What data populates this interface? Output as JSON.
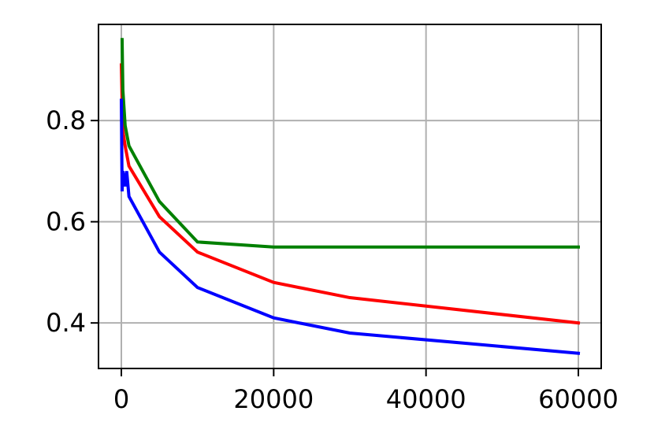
{
  "chart_data": {
    "type": "line",
    "title": "",
    "xlabel": "",
    "ylabel": "",
    "xlim": [
      -3000,
      63000
    ],
    "ylim": [
      0.31,
      0.99
    ],
    "grid": true,
    "legend": "none",
    "x_ticks": [
      {
        "value": 0,
        "label": "0"
      },
      {
        "value": 20000,
        "label": "20000"
      },
      {
        "value": 40000,
        "label": "40000"
      },
      {
        "value": 60000,
        "label": "60000"
      }
    ],
    "y_ticks": [
      {
        "value": 0.4,
        "label": "0.4"
      },
      {
        "value": 0.6,
        "label": "0.6"
      },
      {
        "value": 0.8,
        "label": "0.8"
      }
    ],
    "series": [
      {
        "color": "#ff0000",
        "x": [
          0,
          100,
          200,
          500,
          1000,
          5000,
          10000,
          20000,
          30000,
          60000
        ],
        "y": [
          0.91,
          0.84,
          0.78,
          0.75,
          0.71,
          0.61,
          0.54,
          0.48,
          0.45,
          0.4
        ]
      },
      {
        "color": "#008000",
        "x": [
          100,
          200,
          500,
          1000,
          5000,
          10000,
          20000,
          30000,
          60000
        ],
        "y": [
          0.96,
          0.86,
          0.79,
          0.75,
          0.64,
          0.56,
          0.55,
          0.55,
          0.55
        ]
      },
      {
        "color": "#0000ff",
        "x": [
          0,
          100,
          200,
          500,
          700,
          1000,
          5000,
          10000,
          20000,
          30000,
          60000
        ],
        "y": [
          0.84,
          0.66,
          0.7,
          0.67,
          0.7,
          0.65,
          0.54,
          0.47,
          0.41,
          0.38,
          0.34
        ]
      }
    ]
  }
}
